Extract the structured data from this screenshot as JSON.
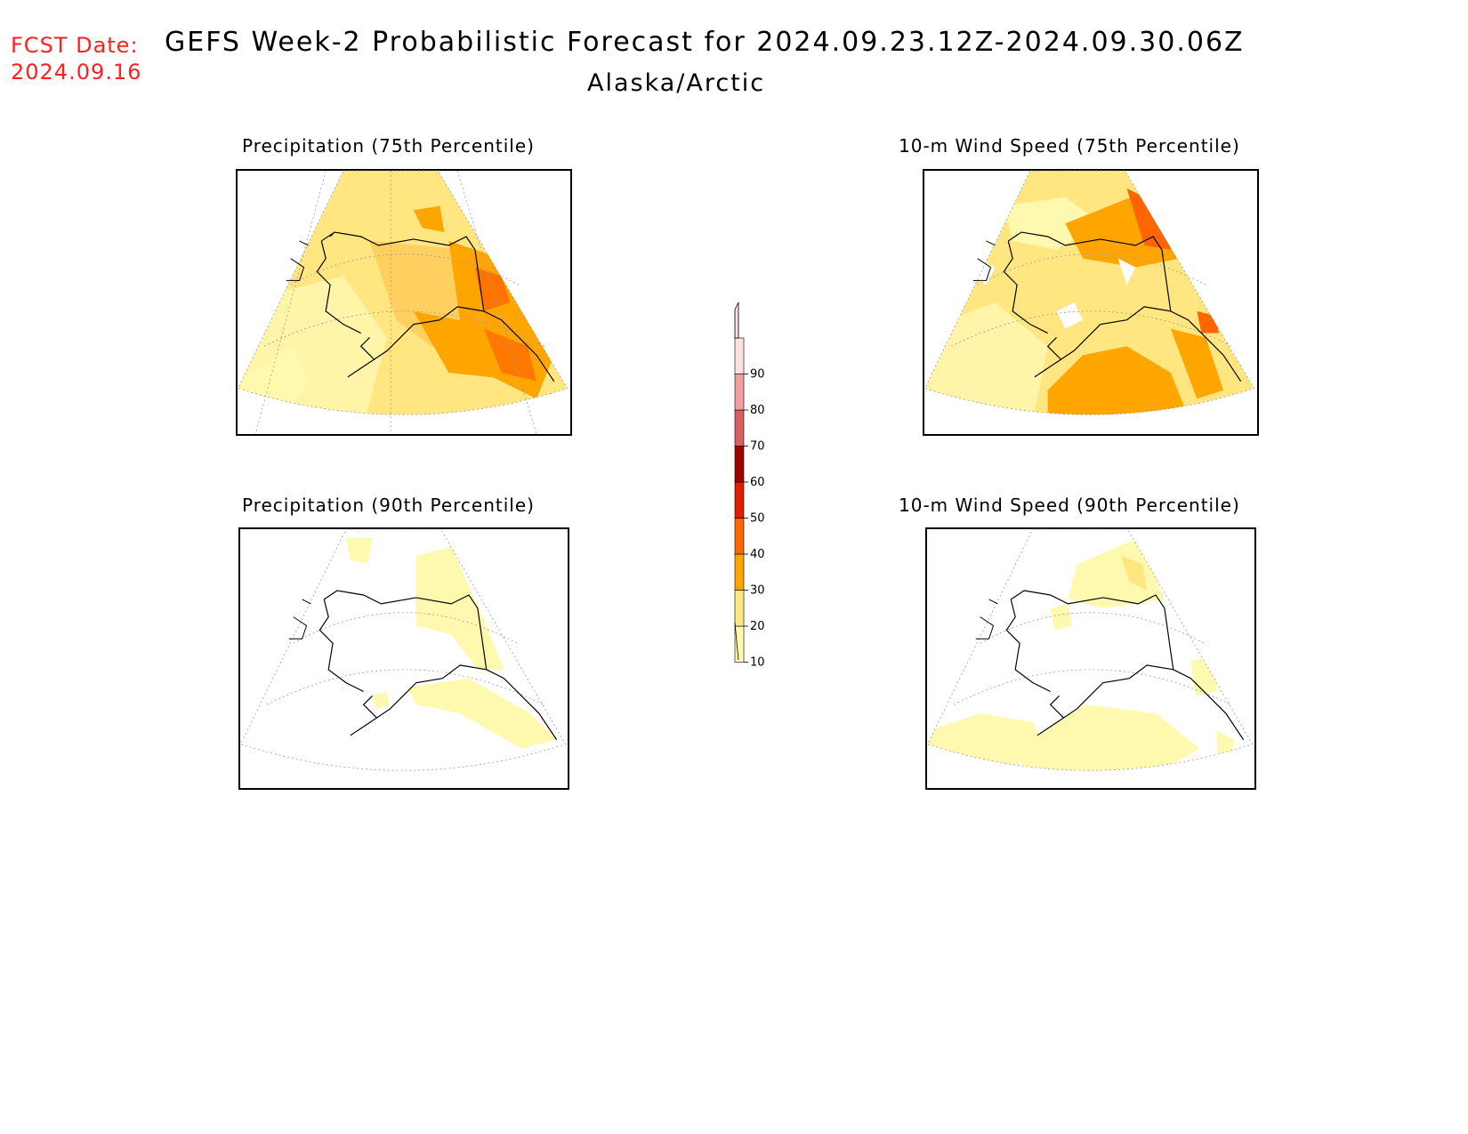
{
  "header": {
    "fcst_line1": "FCST Date:",
    "fcst_line2": "2024.09.16",
    "title": "GEFS Week-2 Probabilistic Forecast for 2024.09.23.12Z-2024.09.30.06Z",
    "subtitle": "Alaska/Arctic"
  },
  "panels": [
    {
      "title": "Precipitation (75th Percentile)"
    },
    {
      "title": "10-m Wind Speed (75th Percentile)"
    },
    {
      "title": "Precipitation (90th Percentile)"
    },
    {
      "title": "10-m Wind Speed (90th Percentile)"
    }
  ],
  "colorbar": {
    "ticks": [
      "10",
      "20",
      "30",
      "40",
      "50",
      "60",
      "70",
      "80",
      "90"
    ],
    "colors": [
      "#fff9b0",
      "#ffe680",
      "#ffa500",
      "#ff6600",
      "#e01e00",
      "#a00000",
      "#d86060",
      "#f0a0a0",
      "#fde0e0"
    ],
    "top_color": "#fde0e0"
  }
}
